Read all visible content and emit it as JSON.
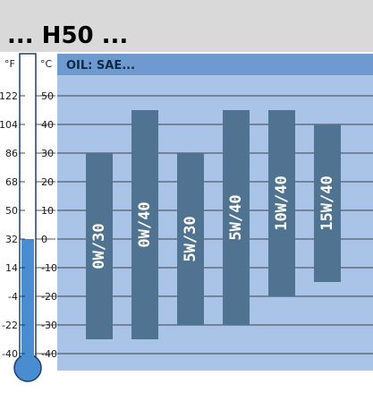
{
  "title": "... H50 ...",
  "panel_header": "OIL: SAE...",
  "unit_fahrenheit": "°F",
  "unit_celsius": "°C",
  "colors": {
    "title_band": "#d9d9d9",
    "panel_header": "#6f9ad0",
    "panel": "#a9c4e6",
    "bar": "#4f7391",
    "gridline": "#1a1a1a",
    "thermometer_fill": "#4a8cd0",
    "thermometer_outline": "#1b3e70"
  },
  "thermometer": {
    "level_celsius": 0,
    "min_celsius": -40,
    "max_celsius": 50
  },
  "chart_data": {
    "type": "bar",
    "orientation": "floating-range",
    "xlabel": "",
    "ylabel": "°C",
    "ylim": [
      -45,
      57
    ],
    "yticks_celsius": [
      "50",
      "40",
      "30",
      "20",
      "10",
      "0",
      "-10",
      "-20",
      "-30",
      "-40"
    ],
    "yticks_fahrenheit": [
      "122",
      "104",
      "86",
      "68",
      "50",
      "32",
      "14",
      "-4",
      "-22",
      "-40"
    ],
    "ytick_values": [
      50,
      40,
      30,
      20,
      10,
      0,
      -10,
      -20,
      -30,
      -40
    ],
    "grid": true,
    "categories": [
      "0W/30",
      "0W/40",
      "5W/30",
      "5W/40",
      "10W/40",
      "15W/40"
    ],
    "ranges": [
      {
        "low": -35,
        "high": 30
      },
      {
        "low": -35,
        "high": 45
      },
      {
        "low": -30,
        "high": 30
      },
      {
        "low": -30,
        "high": 45
      },
      {
        "low": -20,
        "high": 45
      },
      {
        "low": -15,
        "high": 40
      }
    ]
  }
}
